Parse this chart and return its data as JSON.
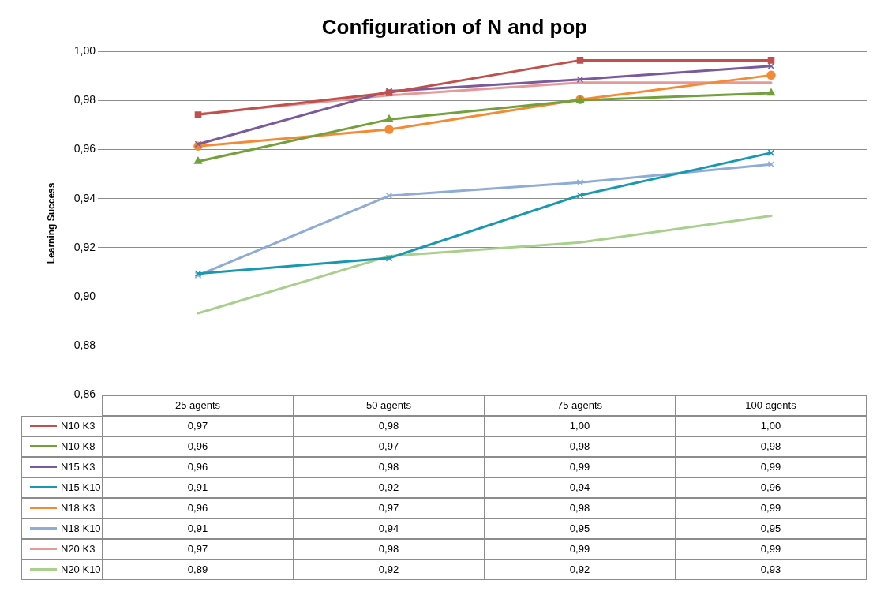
{
  "chart_data": {
    "type": "line",
    "title": "Configuration of N and pop",
    "ylabel": "Learning Success",
    "categories": [
      "25 agents",
      "50 agents",
      "75 agents",
      "100 agents"
    ],
    "ylim": [
      0.86,
      1.0
    ],
    "yticks": [
      {
        "value": 0.86,
        "label": "0,86"
      },
      {
        "value": 0.88,
        "label": "0,88"
      },
      {
        "value": 0.9,
        "label": "0,90"
      },
      {
        "value": 0.92,
        "label": "0,92"
      },
      {
        "value": 0.94,
        "label": "0,94"
      },
      {
        "value": 0.96,
        "label": "0,96"
      },
      {
        "value": 0.98,
        "label": "0,98"
      },
      {
        "value": 1.0,
        "label": "1,00"
      }
    ],
    "grid": "y",
    "legend": "bottom left",
    "series": [
      {
        "name": "N10 K3",
        "color": "#c0504d",
        "marker": "square",
        "values": [
          0.9742,
          0.9832,
          0.9964,
          0.9964
        ],
        "value_labels": [
          "0,97",
          "0,98",
          "1,00",
          "1,00"
        ]
      },
      {
        "name": "N10 K8",
        "color": "#72a13c",
        "marker": "triangle",
        "values": [
          0.9552,
          0.9723,
          0.9801,
          0.983
        ],
        "value_labels": [
          "0,96",
          "0,97",
          "0,98",
          "0,98"
        ]
      },
      {
        "name": "N15 K3",
        "color": "#7a5a9c",
        "marker": "cross",
        "values": [
          0.9622,
          0.9838,
          0.9886,
          0.994
        ],
        "value_labels": [
          "0,96",
          "0,98",
          "0,99",
          "0,99"
        ]
      },
      {
        "name": "N15 K10",
        "color": "#1899b0",
        "marker": "cross",
        "values": [
          0.9095,
          0.9158,
          0.9414,
          0.9587
        ],
        "value_labels": [
          "0,91",
          "0,92",
          "0,94",
          "0,96"
        ]
      },
      {
        "name": "N18 K3",
        "color": "#f58a35",
        "marker": "circle",
        "values": [
          0.9614,
          0.9682,
          0.9804,
          0.9903
        ],
        "value_labels": [
          "0,96",
          "0,97",
          "0,98",
          "0,99"
        ]
      },
      {
        "name": "N18 K10",
        "color": "#8eacd6",
        "marker": "cross",
        "values": [
          0.9088,
          0.9412,
          0.9466,
          0.954
        ],
        "value_labels": [
          "0,91",
          "0,94",
          "0,95",
          "0,95"
        ]
      },
      {
        "name": "N20 K3",
        "color": "#e59a9a",
        "marker": "none",
        "values": [
          0.9745,
          0.9821,
          0.9873,
          0.9873
        ],
        "value_labels": [
          "0,97",
          "0,98",
          "0,99",
          "0,99"
        ]
      },
      {
        "name": "N20 K10",
        "color": "#a8cf8c",
        "marker": "none",
        "values": [
          0.8933,
          0.9166,
          0.9222,
          0.933
        ],
        "value_labels": [
          "0,89",
          "0,92",
          "0,92",
          "0,93"
        ]
      }
    ]
  }
}
